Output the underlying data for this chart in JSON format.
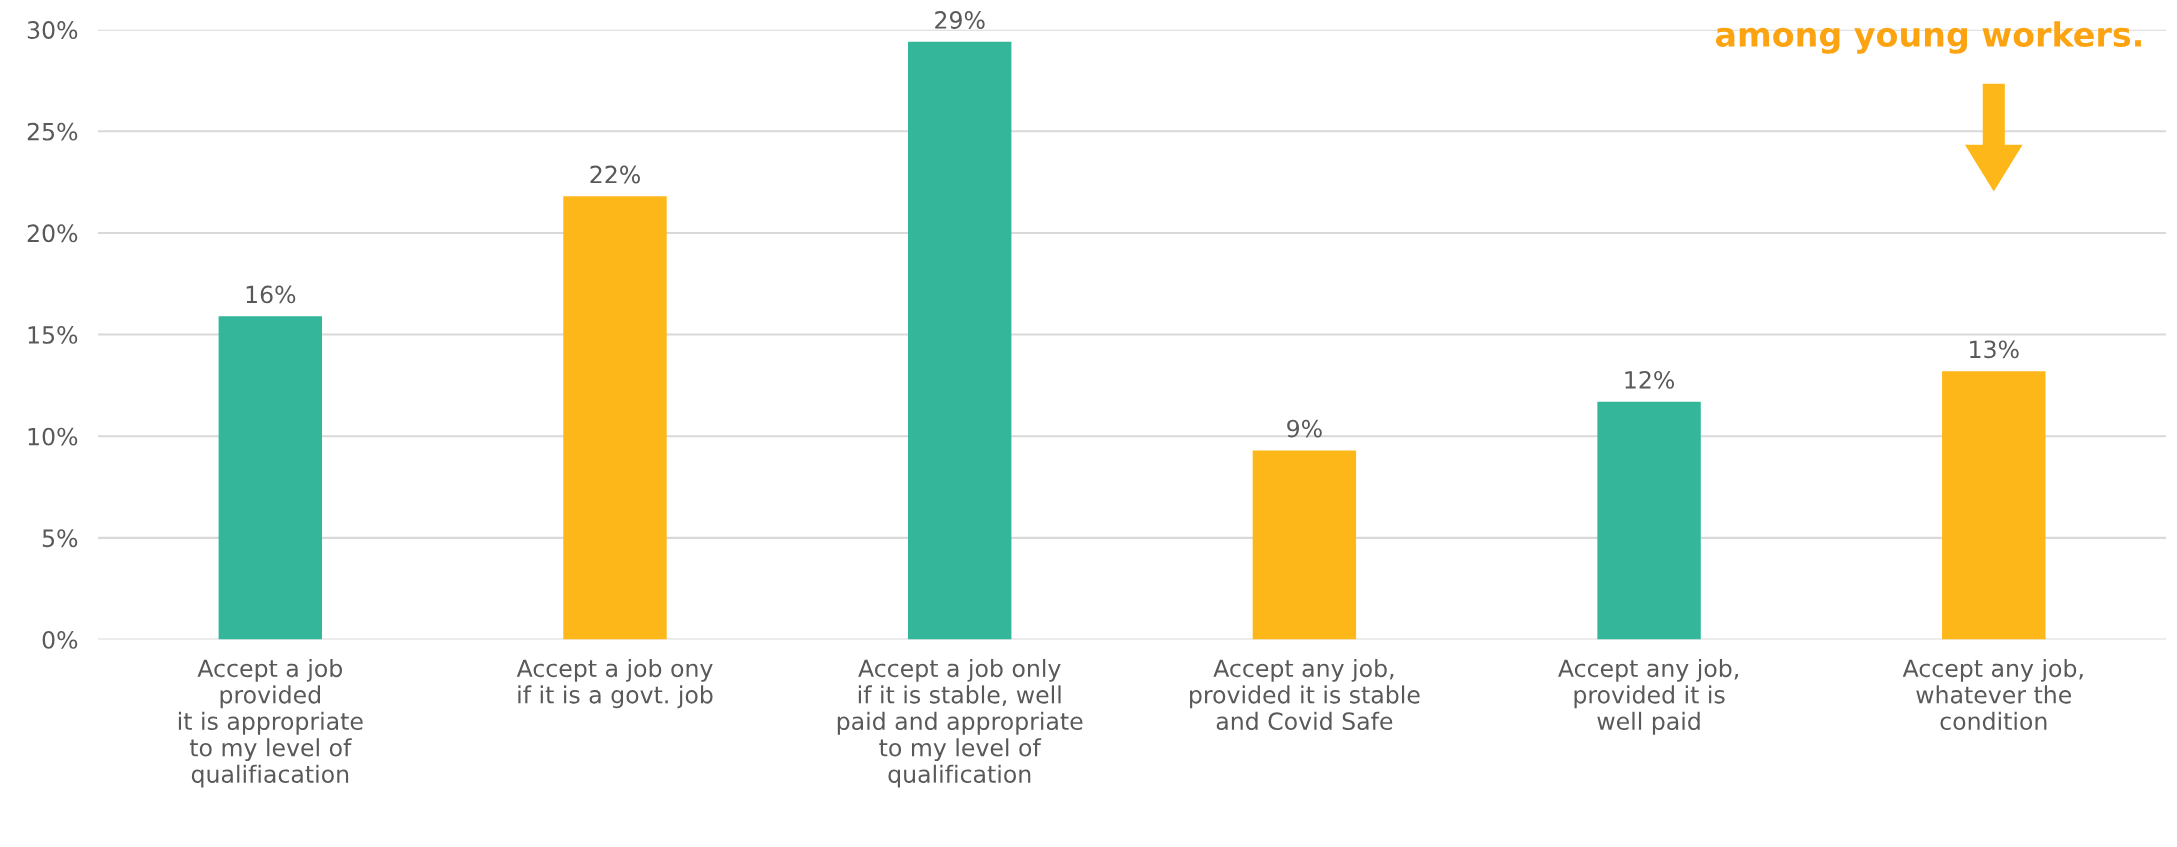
{
  "chart_data": {
    "type": "bar",
    "categories": [
      "Accept a job\nprovided\nit is appropriate\nto my level of\nqualifiacation",
      "Accept a job ony\nif it is a govt. job",
      "Accept a job only\nif it is stable, well\npaid and appropriate\nto my level of\nqualification",
      "Accept any job,\nprovided it is stable\nand Covid Safe",
      "Accept any job,\nprovided it is\nwell paid",
      "Accept any job,\nwhatever the\ncondition"
    ],
    "values": [
      15.9,
      21.8,
      29.4,
      9.3,
      11.7,
      13.2
    ],
    "value_labels": [
      "16%",
      "22%",
      "29%",
      "9%",
      "12%",
      "13%"
    ],
    "colors": [
      "#33b69a",
      "#fdb718",
      "#33b69a",
      "#fdb718",
      "#33b69a",
      "#fdb718"
    ],
    "ylim": [
      0,
      30
    ],
    "yticks": [
      {
        "value": 0,
        "label": "0%"
      },
      {
        "value": 5,
        "label": "5%"
      },
      {
        "value": 10,
        "label": "10%"
      },
      {
        "value": 15,
        "label": "15%"
      },
      {
        "value": 20,
        "label": "20%"
      },
      {
        "value": 25,
        "label": "25%"
      },
      {
        "value": 30,
        "label": "30%"
      }
    ],
    "grid": "y",
    "annotations": [
      "among young workers."
    ]
  }
}
